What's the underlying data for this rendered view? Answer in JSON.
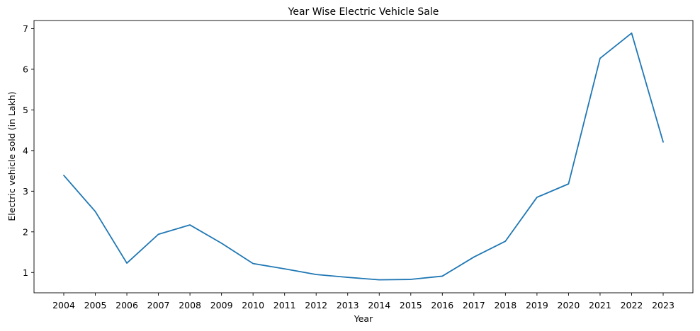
{
  "chart_data": {
    "type": "line",
    "title": "Year Wise Electric Vehicle Sale",
    "xlabel": "Year",
    "ylabel": "Electric vehicle sold (in Lakh)",
    "categories": [
      "2004",
      "2005",
      "2006",
      "2007",
      "2008",
      "2009",
      "2010",
      "2011",
      "2012",
      "2013",
      "2014",
      "2015",
      "2016",
      "2017",
      "2018",
      "2019",
      "2020",
      "2021",
      "2022",
      "2023"
    ],
    "series": [
      {
        "values": [
          3.39,
          2.5,
          1.23,
          1.94,
          2.17,
          1.72,
          1.22,
          1.09,
          0.95,
          0.88,
          0.82,
          0.83,
          0.91,
          1.38,
          1.77,
          2.85,
          3.18,
          6.27,
          6.89,
          4.21
        ],
        "color": "#1f77b4"
      }
    ],
    "ylim": [
      0.5,
      7.2
    ],
    "yticks": [
      1,
      2,
      3,
      4,
      5,
      6,
      7
    ],
    "grid": false
  }
}
